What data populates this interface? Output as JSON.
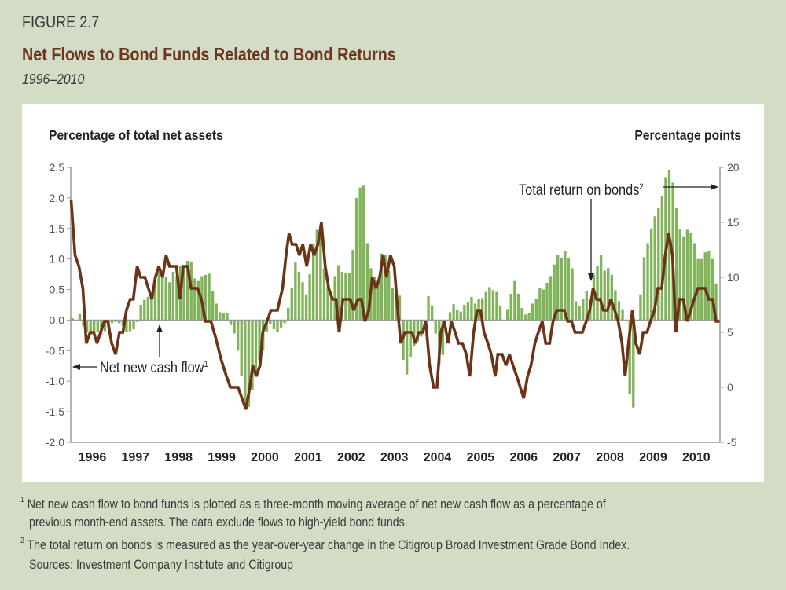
{
  "header": {
    "figure_label": "FIGURE 2.7",
    "title": "Net Flows to Bond Funds Related to Bond Returns",
    "subtitle": "1996–2010"
  },
  "footnotes": {
    "note1_mark": "1",
    "note1_line1": "Net new cash flow to bond funds is plotted as a three-month moving average of net new cash flow as a percentage of",
    "note1_line2": "previous month-end assets. The data exclude flows to high-yield bond funds.",
    "note2_mark": "2",
    "note2_line1": "The total return on bonds is measured as the year-over-year change in the Citigroup Broad Investment Grade Bond Index.",
    "sources": "Sources: Investment Company Institute and Citigroup"
  },
  "chart_data": {
    "type": "bar+line",
    "title": "Net Flows to Bond Funds Related to Bond Returns",
    "ylabel_left": "Percentage of total net assets",
    "ylabel_right": "Percentage points",
    "ylim_left": [
      -2.0,
      2.5
    ],
    "ylim_right": [
      -5,
      20
    ],
    "yticks_left": [
      "2.5",
      "2.0",
      "1.5",
      "1.0",
      "0.5",
      "0.0",
      "-0.5",
      "-1.0",
      "-1.5",
      "-2.0"
    ],
    "yticks_left_values": [
      2.5,
      2.0,
      1.5,
      1.0,
      0.5,
      0.0,
      -0.5,
      -1.0,
      -1.5,
      -2.0
    ],
    "yticks_right": [
      "20",
      "15",
      "10",
      "5",
      "0",
      "-5"
    ],
    "yticks_right_values": [
      20,
      15,
      10,
      5,
      0,
      -5
    ],
    "xticks": [
      "1996",
      "1997",
      "1998",
      "1999",
      "2000",
      "2001",
      "2002",
      "2003",
      "2004",
      "2005",
      "2006",
      "2007",
      "2008",
      "2009",
      "2010"
    ],
    "grid": false,
    "colors": {
      "bars": "#80b35a",
      "line": "#6b3419",
      "axis": "#9a9a9a"
    },
    "annotations": {
      "cash_flow_label": "Net new cash flow",
      "cash_flow_mark": "1",
      "return_label": "Total return on bonds",
      "return_mark": "2"
    },
    "series": [
      {
        "name": "Net new cash flow",
        "axis": "left",
        "kind": "bar",
        "start": "1996-01",
        "frequency": "monthly",
        "values": [
          0.03,
          0.0,
          0.1,
          -0.1,
          -0.2,
          -0.25,
          -0.25,
          -0.2,
          -0.25,
          -0.18,
          -0.1,
          -0.05,
          -0.03,
          -0.05,
          -0.1,
          -0.2,
          -0.18,
          -0.15,
          -0.03,
          0.25,
          0.33,
          0.38,
          0.46,
          0.57,
          0.79,
          0.74,
          0.7,
          0.62,
          0.79,
          0.72,
          0.88,
          0.82,
          0.97,
          0.95,
          0.68,
          0.64,
          0.72,
          0.74,
          0.76,
          0.48,
          0.27,
          0.13,
          0.12,
          0.11,
          -0.08,
          -0.22,
          -0.5,
          -0.91,
          -1.4,
          -1.42,
          -1.15,
          -0.85,
          -0.65,
          -0.5,
          -0.2,
          -0.07,
          -0.15,
          -0.19,
          -0.12,
          -0.05,
          0.2,
          0.53,
          0.94,
          0.79,
          0.62,
          0.42,
          0.75,
          1.24,
          1.48,
          1.45,
          0.85,
          0.55,
          0.38,
          0.72,
          0.9,
          0.79,
          0.77,
          0.77,
          1.15,
          2.0,
          2.17,
          2.2,
          1.26,
          0.85,
          0.7,
          0.64,
          1.09,
          1.07,
          0.81,
          0.53,
          0.5,
          0.4,
          -0.65,
          -0.89,
          -0.61,
          -0.42,
          -0.35,
          -0.27,
          -0.15,
          0.39,
          0.24,
          -0.22,
          -0.72,
          -0.57,
          0.0,
          0.13,
          0.26,
          0.17,
          0.14,
          0.25,
          0.3,
          0.38,
          0.27,
          0.34,
          0.36,
          0.46,
          0.54,
          0.49,
          0.46,
          0.24,
          0.0,
          0.18,
          0.43,
          0.64,
          0.43,
          0.2,
          0.09,
          0.11,
          0.27,
          0.34,
          0.52,
          0.5,
          0.61,
          0.72,
          0.91,
          1.06,
          1.01,
          1.13,
          1.01,
          0.85,
          0.31,
          0.23,
          0.34,
          0.47,
          0.34,
          0.74,
          0.88,
          1.06,
          0.81,
          0.85,
          0.74,
          0.49,
          0.31,
          0.18,
          0.0,
          -1.21,
          -1.43,
          0.0,
          0.42,
          1.03,
          1.26,
          1.5,
          1.7,
          1.83,
          2.03,
          2.34,
          2.45,
          2.25,
          1.83,
          1.49,
          1.36,
          1.48,
          1.43,
          1.26,
          1.0,
          1.0,
          1.11,
          1.13,
          1.0,
          0.6
        ]
      },
      {
        "name": "Total return on bonds",
        "axis": "right",
        "kind": "line",
        "x": [
          1996.01,
          1996.1,
          1996.19,
          1996.28,
          1996.36,
          1996.45,
          1996.53,
          1996.61,
          1996.69,
          1996.78,
          1996.86,
          1996.95,
          1997.04,
          1997.13,
          1997.21,
          1997.29,
          1997.38,
          1997.45,
          1997.54,
          1997.62,
          1997.72,
          1997.8,
          1997.88,
          1997.96,
          1998.04,
          1998.13,
          1998.21,
          1998.29,
          1998.45,
          1998.53,
          1998.61,
          1998.71,
          1998.79,
          1998.94,
          1999.03,
          1999.12,
          1999.25,
          1999.36,
          1999.49,
          1999.61,
          1999.7,
          1999.88,
          2000.06,
          2000.15,
          2000.22,
          2000.3,
          2000.39,
          2000.45,
          2000.55,
          2000.64,
          2000.79,
          2000.91,
          2000.99,
          2001.06,
          2001.13,
          2001.22,
          2001.3,
          2001.38,
          2001.47,
          2001.56,
          2001.64,
          2001.73,
          2001.81,
          2001.9,
          2001.98,
          2002.07,
          2002.15,
          2002.22,
          2002.31,
          2002.48,
          2002.56,
          2002.66,
          2002.74,
          2002.82,
          2002.91,
          2002.99,
          2003.08,
          2003.16,
          2003.24,
          2003.32,
          2003.41,
          2003.5,
          2003.58,
          2003.65,
          2003.75,
          2003.91,
          2003.99,
          2004.07,
          2004.16,
          2004.23,
          2004.32,
          2004.41,
          2004.49,
          2004.58,
          2004.66,
          2004.75,
          2004.82,
          2004.91,
          2004.99,
          2005.08,
          2005.17,
          2005.25,
          2005.34,
          2005.42,
          2005.5,
          2005.58,
          2005.67,
          2005.75,
          2005.84,
          2005.9,
          2006.0,
          2006.09,
          2006.17,
          2006.25,
          2006.34,
          2006.42,
          2006.5,
          2006.59,
          2006.67,
          2006.76,
          2006.84,
          2006.93,
          2007.01,
          2007.1,
          2007.18,
          2007.27,
          2007.44,
          2007.52,
          2007.61,
          2007.69,
          2007.86,
          2007.95,
          2008.03,
          2008.11,
          2008.19,
          2008.27,
          2008.35,
          2008.44,
          2008.52,
          2008.61,
          2008.69,
          2008.78,
          2008.85,
          2008.93,
          2009.02,
          2009.1,
          2009.19,
          2009.27,
          2009.36,
          2009.44,
          2009.53,
          2009.61,
          2009.7,
          2009.78,
          2009.86,
          2009.95,
          2010.03,
          2010.11,
          2010.2,
          2010.29,
          2010.37,
          2010.45,
          2010.54,
          2010.62,
          2010.71,
          2010.79,
          2010.88,
          2010.96,
          2011.04
        ],
        "values": [
          17,
          12,
          11,
          9,
          4,
          5,
          5,
          4,
          5,
          6,
          6,
          4,
          3,
          5,
          5,
          7,
          8,
          8,
          11,
          10,
          10,
          9,
          8,
          10,
          11,
          10,
          12,
          11,
          11,
          8,
          11,
          11,
          9,
          9,
          8,
          6,
          6,
          4.5,
          2.5,
          1,
          0,
          0,
          -2,
          0,
          2,
          1,
          2,
          5,
          6,
          7,
          7,
          9,
          12,
          14,
          13,
          13,
          12,
          13,
          11,
          13,
          12,
          13,
          15,
          11,
          9,
          8,
          8,
          5,
          8,
          8,
          7,
          8,
          8,
          6,
          7,
          10,
          9,
          10,
          12,
          10,
          12,
          11,
          7,
          4,
          5,
          5,
          4,
          5,
          5,
          6,
          2,
          0,
          0,
          5,
          6,
          4,
          6,
          5,
          4,
          4,
          3,
          1,
          5,
          7,
          7,
          5,
          4,
          3,
          1,
          3,
          3,
          2,
          3,
          2,
          1,
          0,
          -1,
          1,
          2,
          4,
          5,
          6,
          4,
          4,
          6,
          7,
          7,
          6,
          6,
          5,
          5,
          6,
          7,
          9,
          8,
          8,
          7,
          7,
          8,
          7,
          6,
          4,
          1,
          4,
          7,
          4,
          3,
          5,
          5,
          6,
          7,
          9,
          9,
          12,
          14,
          12,
          5,
          8,
          8,
          6,
          7,
          8,
          9,
          9,
          9,
          8,
          8,
          6,
          6
        ]
      }
    ]
  }
}
